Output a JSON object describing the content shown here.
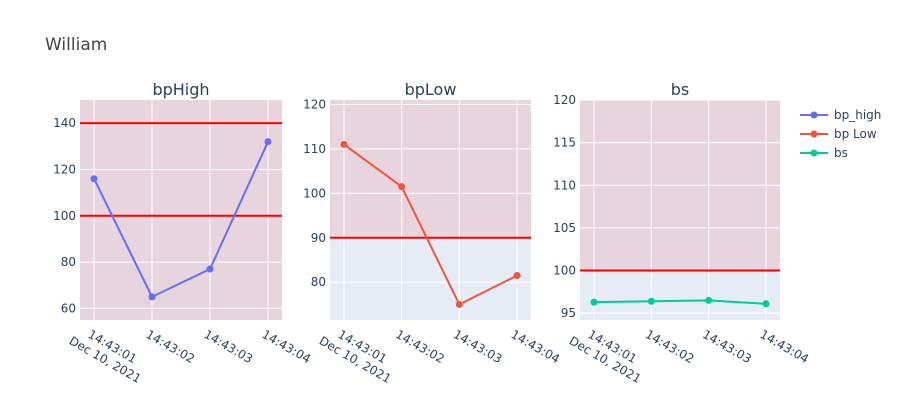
{
  "title": "William",
  "x_tick_labels": [
    "14:43:01",
    "14:43:02",
    "14:43:03",
    "14:43:04"
  ],
  "x_date_label": "Dec 10, 2021",
  "colors": {
    "plot_bg": "#e5ecf6",
    "shaded_band": "#e8d4dd",
    "threshold_line": "#ff0000",
    "grid": "#ffffff",
    "axis_text": "#2a3f5f"
  },
  "legend": [
    {
      "name": "bp_high",
      "color": "#636efa"
    },
    {
      "name": "bp Low",
      "color": "#ef553b"
    },
    {
      "name": "bs",
      "color": "#00cc96"
    }
  ],
  "chart_data": [
    {
      "type": "line",
      "title": "bpHigh",
      "x": [
        "2021-12-10 14:43:01",
        "2021-12-10 14:43:02",
        "2021-12-10 14:43:03",
        "2021-12-10 14:43:04"
      ],
      "series": [
        {
          "name": "bp_high",
          "values": [
            116,
            65,
            77,
            132
          ]
        }
      ],
      "ylim": [
        55,
        150
      ],
      "yticks": [
        60,
        80,
        100,
        120,
        140
      ],
      "shaded_range": [
        55,
        150
      ],
      "thresholds": [
        100,
        140
      ]
    },
    {
      "type": "line",
      "title": "bpLow",
      "x": [
        "2021-12-10 14:43:01",
        "2021-12-10 14:43:02",
        "2021-12-10 14:43:03",
        "2021-12-10 14:43:04"
      ],
      "series": [
        {
          "name": "bp Low",
          "values": [
            111,
            101.5,
            75,
            81.5
          ]
        }
      ],
      "ylim": [
        71.5,
        121
      ],
      "yticks": [
        80,
        90,
        100,
        110,
        120
      ],
      "shaded_range": [
        90,
        121
      ],
      "thresholds": [
        90
      ]
    },
    {
      "type": "line",
      "title": "bs",
      "x": [
        "2021-12-10 14:43:01",
        "2021-12-10 14:43:02",
        "2021-12-10 14:43:03",
        "2021-12-10 14:43:04"
      ],
      "series": [
        {
          "name": "bs",
          "values": [
            96.3,
            96.4,
            96.5,
            96.1
          ]
        }
      ],
      "ylim": [
        94.2,
        120
      ],
      "yticks": [
        95,
        100,
        105,
        110,
        115,
        120
      ],
      "shaded_range": [
        100,
        120
      ],
      "thresholds": [
        100
      ]
    }
  ]
}
